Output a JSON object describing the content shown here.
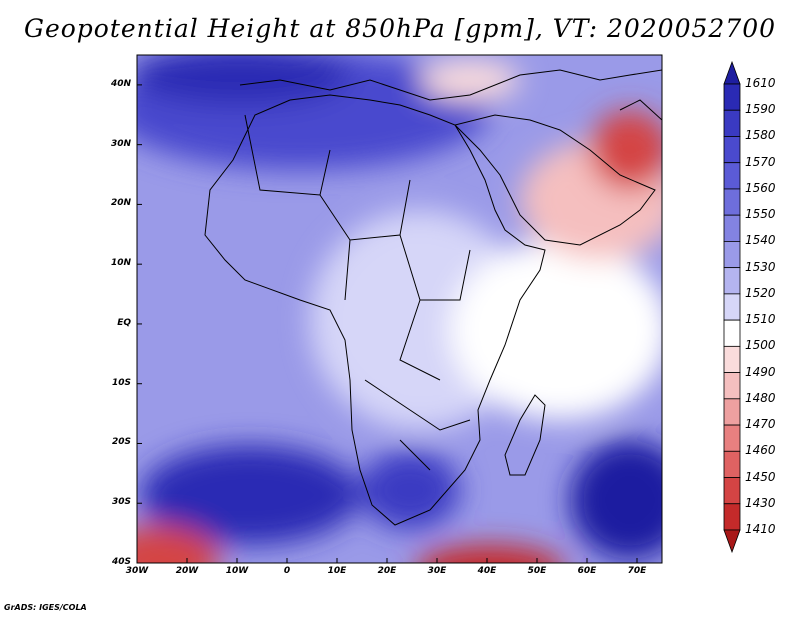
{
  "title": "Geopotential Height at 850hPa [gpm], VT: 2020052700",
  "footer": "GrADS: IGES/COLA",
  "map": {
    "variable": "Geopotential Height",
    "level": "850hPa",
    "units": "gpm",
    "valid_time": "2020052700",
    "lon_range": [
      -30,
      75
    ],
    "lat_range": [
      -40,
      45
    ]
  },
  "lat_labels": [
    {
      "lat": 40,
      "text": "40N"
    },
    {
      "lat": 30,
      "text": "30N"
    },
    {
      "lat": 20,
      "text": "20N"
    },
    {
      "lat": 10,
      "text": "10N"
    },
    {
      "lat": 0,
      "text": "EQ"
    },
    {
      "lat": -10,
      "text": "10S"
    },
    {
      "lat": -20,
      "text": "20S"
    },
    {
      "lat": -30,
      "text": "30S"
    },
    {
      "lat": -40,
      "text": "40S"
    }
  ],
  "lon_labels": [
    {
      "lon": -30,
      "text": "30W"
    },
    {
      "lon": -20,
      "text": "20W"
    },
    {
      "lon": -10,
      "text": "10W"
    },
    {
      "lon": 0,
      "text": "0"
    },
    {
      "lon": 10,
      "text": "10E"
    },
    {
      "lon": 20,
      "text": "20E"
    },
    {
      "lon": 30,
      "text": "30E"
    },
    {
      "lon": 40,
      "text": "40E"
    },
    {
      "lon": 50,
      "text": "50E"
    },
    {
      "lon": 60,
      "text": "60E"
    },
    {
      "lon": 70,
      "text": "70E"
    }
  ],
  "colorbar": {
    "levels": [
      "1610",
      "1590",
      "1580",
      "1570",
      "1560",
      "1550",
      "1540",
      "1530",
      "1520",
      "1510",
      "1500",
      "1490",
      "1480",
      "1470",
      "1460",
      "1450",
      "1430",
      "1410"
    ],
    "colors": [
      "#1e1ea0",
      "#2a2ab4",
      "#3a3ac2",
      "#4a4ace",
      "#5b5bd6",
      "#6e6edc",
      "#8383e2",
      "#9a9ae8",
      "#b4b4f0",
      "#d6d6f8",
      "#ffffff",
      "#fadcdc",
      "#f5bfbf",
      "#eea0a0",
      "#e88080",
      "#df6262",
      "#d44444",
      "#c42a2a",
      "#a81818"
    ]
  }
}
